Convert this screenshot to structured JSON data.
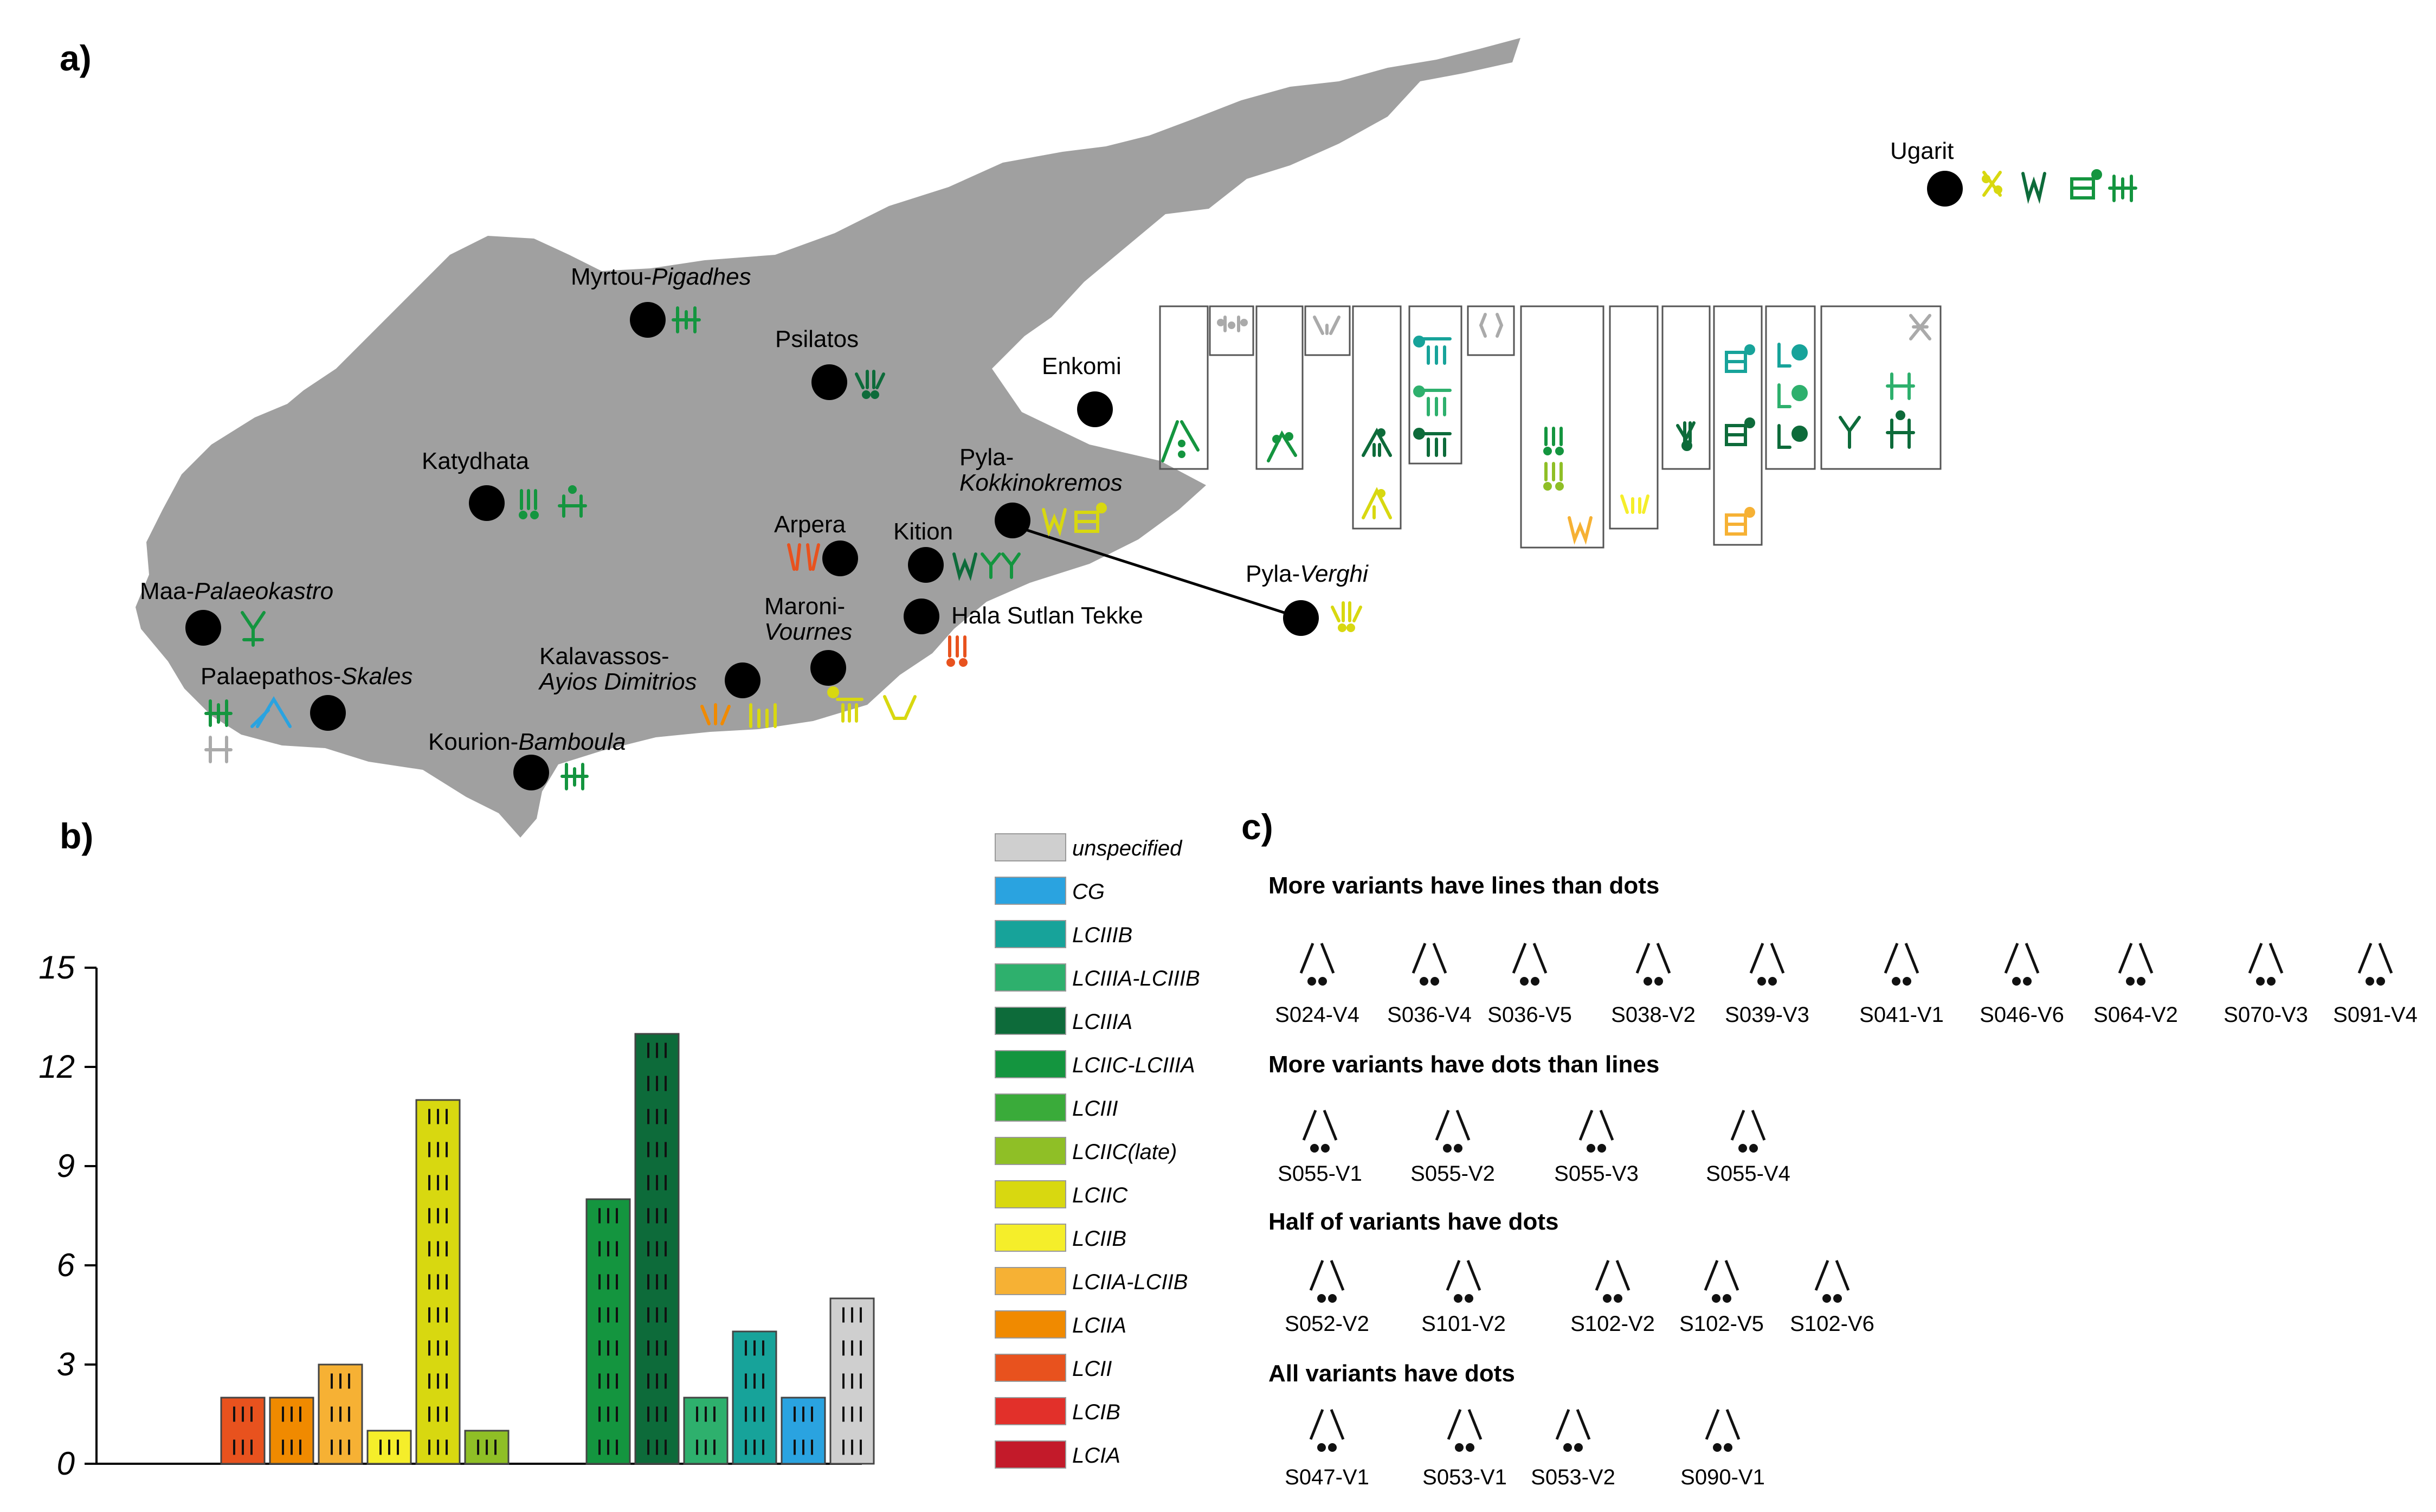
{
  "panels": {
    "a": "a)",
    "b": "b)",
    "c": "c)"
  },
  "colors": {
    "map_land": "#a0a0a0",
    "site_dot": "#000000",
    "unspecified": "#cfcfcf",
    "CG": "#2aa3e0",
    "LCIIIB": "#17a39a",
    "LCIIIA_LCIIIB": "#2eb06d",
    "LCIIIA": "#0d6b3a",
    "LCIIC_LCIIIA": "#14953f",
    "LCIII": "#3aab3a",
    "LCIIC_late": "#8fbf26",
    "LCIIC": "#d8d810",
    "LCIIB": "#f5ee2a",
    "LCIIA_LCIIB": "#f6b134",
    "LCIIA": "#f08a00",
    "LCII": "#e8521e",
    "LCIB": "#e2302a",
    "LCIA": "#c31a2a"
  },
  "map": {
    "sites": [
      {
        "name": "Ugarit",
        "italic": ""
      },
      {
        "name": "Myrtou-",
        "italic": "Pigadhes"
      },
      {
        "name": "Psilatos",
        "italic": ""
      },
      {
        "name": "Enkomi",
        "italic": ""
      },
      {
        "name": "Katydhata",
        "italic": ""
      },
      {
        "name": "Pyla-",
        "italic": "Kokkinokremos"
      },
      {
        "name": "Arpera",
        "italic": ""
      },
      {
        "name": "Kition",
        "italic": ""
      },
      {
        "name": "Maa-",
        "italic": "Palaeokastro"
      },
      {
        "name": "Maroni-",
        "italic": "Vournes"
      },
      {
        "name": "Hala Sutlan Tekke",
        "italic": ""
      },
      {
        "name": "Pyla-",
        "italic": "Verghi"
      },
      {
        "name": "Kalavassos-",
        "italic": "Ayios Dimitrios"
      },
      {
        "name": "Palaepathos-",
        "italic": "Skales"
      },
      {
        "name": "Kourion-",
        "italic": "Bamboula"
      }
    ]
  },
  "chart_data": {
    "type": "bar",
    "ylim": [
      0,
      15
    ],
    "yticks": [
      "0",
      "3",
      "6",
      "9",
      "12",
      "15"
    ],
    "bars": [
      {
        "period": "LCII",
        "value": 2,
        "color": "#e8521e"
      },
      {
        "period": "LCIIA",
        "value": 2,
        "color": "#f08a00"
      },
      {
        "period": "LCIIA-LCIIB",
        "value": 3,
        "color": "#f6b134"
      },
      {
        "period": "LCIIB",
        "value": 1,
        "color": "#f5ee2a"
      },
      {
        "period": "LCIIC",
        "value": 11,
        "color": "#d8d810"
      },
      {
        "period": "LCIIC(late)",
        "value": 1,
        "color": "#8fbf26"
      },
      {
        "period": "LCIIC-LCIIIA",
        "value": 8,
        "color": "#14953f"
      },
      {
        "period": "LCIIIA",
        "value": 13,
        "color": "#0d6b3a"
      },
      {
        "period": "LCIIIA-LCIIIB",
        "value": 2,
        "color": "#2eb06d"
      },
      {
        "period": "LCIIIB",
        "value": 4,
        "color": "#17a39a"
      },
      {
        "period": "CG",
        "value": 2,
        "color": "#2aa3e0"
      },
      {
        "period": "unspecified",
        "value": 5,
        "color": "#cfcfcf"
      }
    ],
    "legend": [
      {
        "label": "unspecified",
        "color": "#cfcfcf"
      },
      {
        "label": "CG",
        "color": "#2aa3e0"
      },
      {
        "label": "LCIIIB",
        "color": "#17a39a"
      },
      {
        "label": "LCIIIA-LCIIIB",
        "color": "#2eb06d"
      },
      {
        "label": "LCIIIA",
        "color": "#0d6b3a"
      },
      {
        "label": "LCIIC-LCIIIA",
        "color": "#14953f"
      },
      {
        "label": "LCIII",
        "color": "#3aab3a"
      },
      {
        "label": "LCIIC(late)",
        "color": "#8fbf26"
      },
      {
        "label": "LCIIC",
        "color": "#d8d810"
      },
      {
        "label": "LCIIB",
        "color": "#f5ee2a"
      },
      {
        "label": "LCIIA-LCIIB",
        "color": "#f6b134"
      },
      {
        "label": "LCIIA",
        "color": "#f08a00"
      },
      {
        "label": "LCII",
        "color": "#e8521e"
      },
      {
        "label": "LCIB",
        "color": "#e2302a"
      },
      {
        "label": "LCIA",
        "color": "#c31a2a"
      }
    ],
    "legend_placement": "right"
  },
  "panel_c": {
    "sections": [
      {
        "title": "More variants have lines than dots",
        "items": [
          "S024-V4",
          "S036-V4",
          "S036-V5",
          "S038-V2",
          "S039-V3",
          "S041-V1",
          "S046-V6",
          "S064-V2",
          "S070-V3",
          "S091-V4"
        ]
      },
      {
        "title": "More variants have dots than lines",
        "items": [
          "S055-V1",
          "S055-V2",
          "S055-V3",
          "S055-V4"
        ]
      },
      {
        "title": "Half of variants have dots",
        "items": [
          "S052-V2",
          "S101-V2",
          "S102-V2",
          "S102-V5",
          "S102-V6"
        ]
      },
      {
        "title": "All variants have dots",
        "items": [
          "S047-V1",
          "S053-V1",
          "S053-V2",
          "S090-V1"
        ]
      }
    ]
  }
}
